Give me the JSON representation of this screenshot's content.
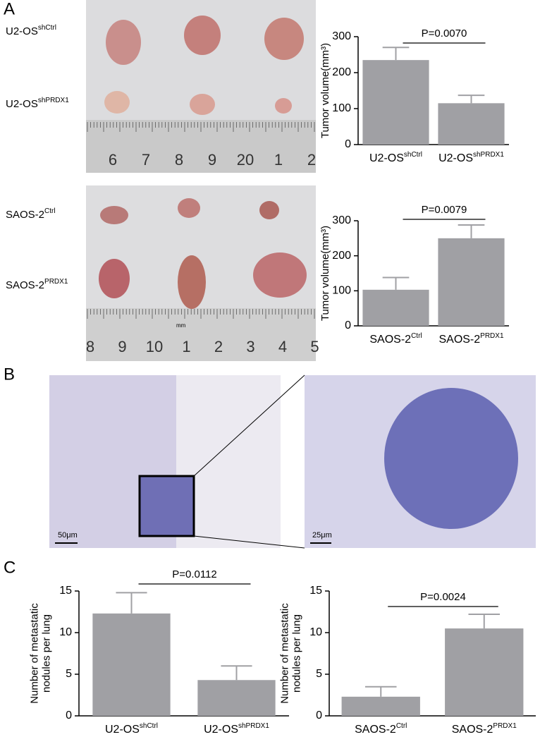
{
  "panels": [
    "A",
    "B",
    "C"
  ],
  "photo_labels": [
    {
      "text": "U2-OS",
      "sup": "shCtrl"
    },
    {
      "text": "U2-OS",
      "sup": "shPRDX1"
    },
    {
      "text": "SAOS-2",
      "sup": "Ctrl"
    },
    {
      "text": "SAOS-2",
      "sup": "PRDX1"
    }
  ],
  "rulers": [
    [
      "6",
      "7",
      "8",
      "9",
      "20",
      "1",
      "2"
    ],
    [
      "8",
      "9",
      "10",
      "1",
      "2",
      "3",
      "4",
      "5"
    ]
  ],
  "ruler_unit": "mm",
  "scale_bars": [
    "50μm",
    "25μm"
  ],
  "chart_data": [
    {
      "type": "bar",
      "ylabel": [
        "Tumor volume(mm³)"
      ],
      "annotation": "P=0.0070",
      "categories": [
        "U2-OS",
        "U2-OS"
      ],
      "category_sups": [
        "shCtrl",
        "shPRDX1"
      ],
      "values": [
        235,
        115
      ],
      "errors": [
        35,
        22
      ],
      "color": "#a0a0a4",
      "ylim": [
        0,
        300
      ],
      "yticks": [
        0,
        100,
        200,
        300
      ]
    },
    {
      "type": "bar",
      "ylabel": [
        "Tumor volume(mm³)"
      ],
      "annotation": "P=0.0079",
      "categories": [
        "SAOS-2",
        "SAOS-2"
      ],
      "category_sups": [
        "Ctrl",
        "PRDX1"
      ],
      "values": [
        103,
        250
      ],
      "errors": [
        35,
        38
      ],
      "color": "#a0a0a4",
      "ylim": [
        0,
        300
      ],
      "yticks": [
        0,
        100,
        200,
        300
      ]
    },
    {
      "type": "bar",
      "ylabel": [
        "Number of metastatic",
        "nodules per lung"
      ],
      "annotation": "P=0.0112",
      "categories": [
        "U2-OS",
        "U2-OS"
      ],
      "category_sups": [
        "shCtrl",
        "shPRDX1"
      ],
      "values": [
        12.3,
        4.3
      ],
      "errors": [
        2.5,
        1.7
      ],
      "color": "#a0a0a4",
      "ylim": [
        0,
        15
      ],
      "yticks": [
        0,
        5,
        10,
        15
      ]
    },
    {
      "type": "bar",
      "ylabel": [
        "Number of metastatic",
        "nodules per lung"
      ],
      "annotation": "P=0.0024",
      "categories": [
        "SAOS-2",
        "SAOS-2"
      ],
      "category_sups": [
        "Ctrl",
        "PRDX1"
      ],
      "values": [
        2.3,
        10.5
      ],
      "errors": [
        1.2,
        1.7
      ],
      "color": "#a0a0a4",
      "ylim": [
        0,
        15
      ],
      "yticks": [
        0,
        5,
        10,
        15
      ]
    }
  ]
}
